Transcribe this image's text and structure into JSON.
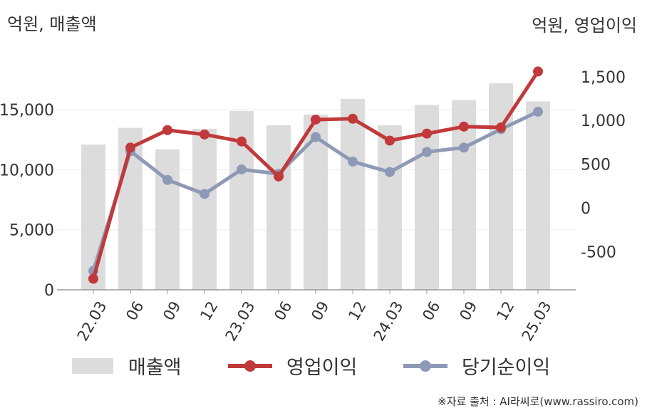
{
  "chart_data": {
    "type": "bar+line",
    "categories": [
      "22.03",
      "06",
      "09",
      "12",
      "23.03",
      "06",
      "09",
      "12",
      "24.03",
      "06",
      "09",
      "12",
      "25.03"
    ],
    "left_axis": {
      "unit_label": "억원, 매출액",
      "ylim": [
        0,
        20000
      ],
      "ticks": [
        0,
        5000,
        10000,
        15000
      ],
      "tick_labels": [
        "0",
        "5,000",
        "10,000",
        "15,000"
      ]
    },
    "right_axis": {
      "unit_label": "억원, 영업이익",
      "ylim": [
        -1000,
        2000
      ],
      "ticks": [
        -500,
        0,
        500,
        1000,
        1500
      ],
      "tick_labels": [
        "-500",
        "0",
        "500",
        "1,000",
        "1,500"
      ]
    },
    "series": [
      {
        "name": "매출액",
        "type": "bar",
        "axis": "left",
        "color": "#dcdcdc",
        "values": [
          12100,
          13500,
          11700,
          13400,
          14900,
          13700,
          14600,
          15900,
          13700,
          15400,
          15800,
          17200,
          15700
        ]
      },
      {
        "name": "영업이익",
        "type": "line",
        "axis": "right",
        "color": "#c1393a",
        "values": [
          -810,
          690,
          890,
          840,
          760,
          360,
          1010,
          1020,
          770,
          850,
          930,
          920,
          1560
        ]
      },
      {
        "name": "당기순이익",
        "type": "line",
        "axis": "right",
        "color": "#8e9ab5",
        "values": [
          -720,
          650,
          320,
          160,
          440,
          390,
          810,
          530,
          410,
          640,
          690,
          900,
          1100
        ]
      }
    ],
    "grid": "horizontal",
    "legend_position": "bottom"
  },
  "source_note": "※자료 출처 : AI라씨로(www.rassiro.com)"
}
